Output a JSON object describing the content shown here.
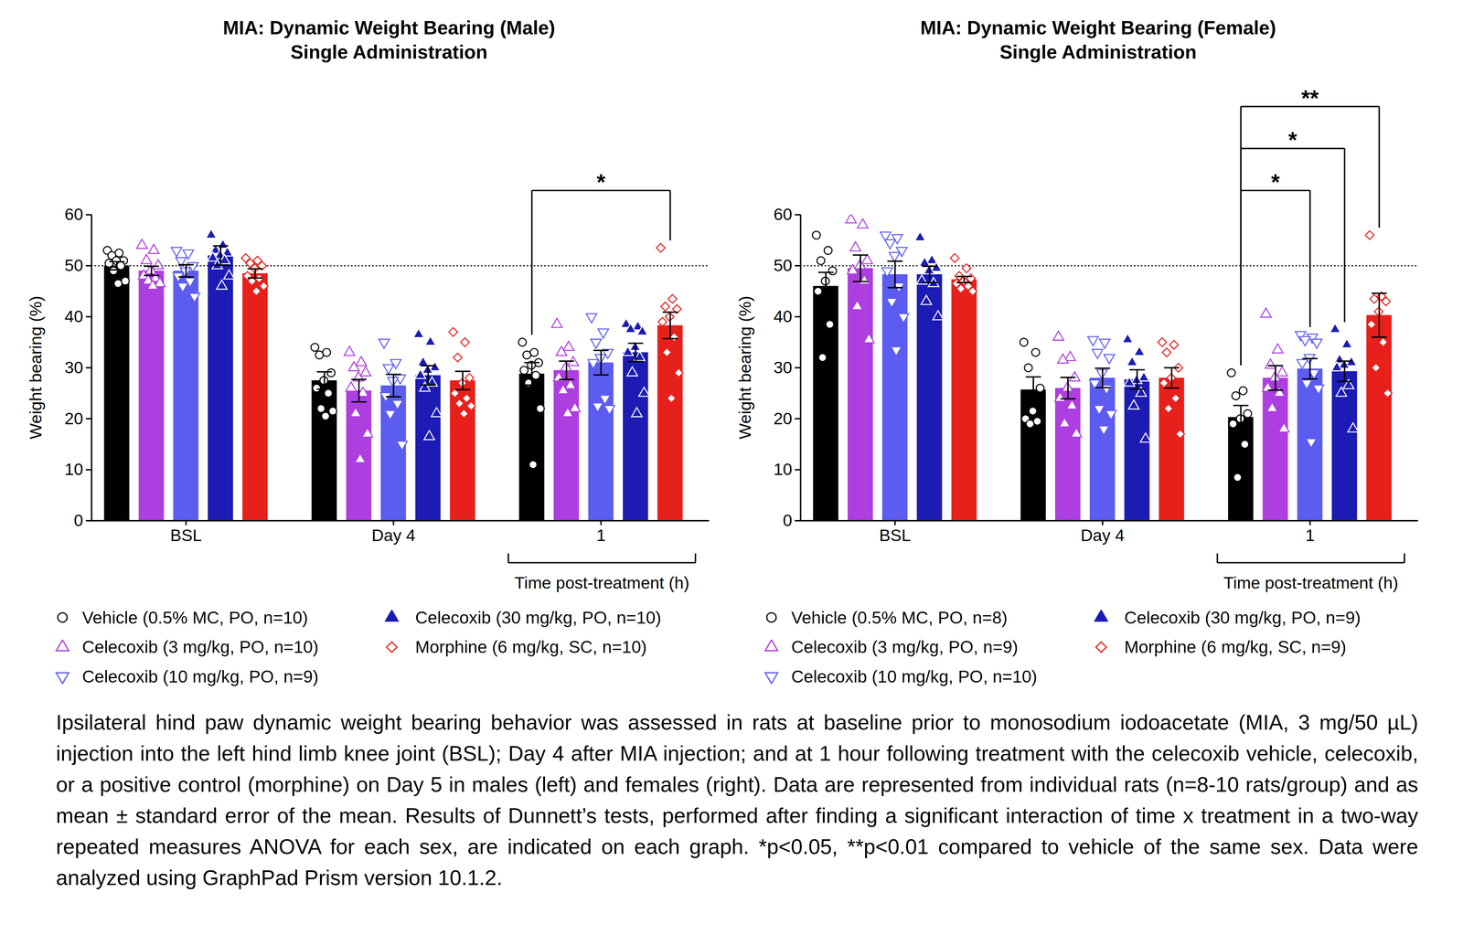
{
  "chart_data": [
    {
      "type": "bar",
      "title": "MIA: Dynamic Weight Bearing (Male)",
      "subtitle": "Single Administration",
      "categories": [
        "BSL",
        "Day 4",
        "1"
      ],
      "ylabel": "Weight bearing (%)",
      "ylim": [
        0,
        60
      ],
      "yticks": [
        0,
        10,
        20,
        30,
        40,
        50,
        60
      ],
      "legend": "bottom",
      "reference_line": {
        "y": 50,
        "line_style": "dotted"
      },
      "annotations": [
        {
          "text": "Time post-treatment (h)",
          "category": "1"
        }
      ],
      "significance": [
        {
          "category": "1",
          "from": "Vehicle (0.5% MC, PO, n=10)",
          "to": "Morphine (6 mg/kg, SC, n=10)",
          "label": "*"
        }
      ],
      "series": [
        {
          "name": "Vehicle (0.5% MC, PO, n=10)",
          "color": "#000000",
          "marker": "circle-open",
          "values": [
            50,
            27.5,
            28.8
          ],
          "errors": [
            0.8,
            1.7,
            2.2
          ],
          "points": [
            [
              53,
              52.5,
              52,
              51,
              51,
              50.5,
              50,
              49,
              47,
              46.5
            ],
            [
              34,
              33,
              32.5,
              29,
              27.5,
              26,
              25,
              22,
              21.5,
              20.5
            ],
            [
              35,
              33,
              32.5,
              31,
              30.5,
              29.5,
              28.5,
              27,
              22,
              11
            ]
          ]
        },
        {
          "name": "Celecoxib (3 mg/kg, PO, n=10)",
          "color": "#ad3ee0",
          "marker": "triangle-open",
          "values": [
            49,
            25.5,
            29.5
          ],
          "errors": [
            0.9,
            2.2,
            1.8
          ],
          "points": [
            [
              54,
              53,
              51,
              50,
              49,
              48,
              47.5,
              47,
              46.5,
              46
            ],
            [
              33,
              31,
              30,
              29,
              28,
              26,
              25,
              21,
              17,
              12
            ],
            [
              38.5,
              34,
              33,
              31,
              30,
              28,
              26.5,
              25.5,
              22,
              21
            ]
          ]
        },
        {
          "name": "Celecoxib (10 mg/kg, PO, n=9)",
          "color": "#5c5cf0",
          "marker": "triangle-down-open",
          "values": [
            49,
            26.5,
            31
          ],
          "errors": [
            1.2,
            2.2,
            2.4
          ],
          "points": [
            [
              53,
              52.5,
              51,
              50,
              49,
              48,
              47,
              46,
              44
            ],
            [
              35,
              31,
              30,
              28,
              27.5,
              24.5,
              23,
              21,
              15
            ],
            [
              40,
              37,
              35,
              33,
              32,
              31,
              24,
              22.5,
              22
            ]
          ]
        },
        {
          "name": "Celecoxib (30 mg/kg, PO, n=10)",
          "color": "#1c1cb4",
          "marker": "triangle",
          "values": [
            52,
            28.5,
            33
          ],
          "errors": [
            1.9,
            1.9,
            1.8
          ],
          "points": [
            [
              56,
              54,
              53,
              52.5,
              52,
              51.5,
              51,
              50,
              48,
              46
            ],
            [
              36.5,
              35,
              31,
              30,
              29.5,
              28.5,
              27,
              26,
              21,
              16.5
            ],
            [
              38.5,
              38,
              37.5,
              37,
              34,
              33,
              32,
              29,
              25,
              21
            ]
          ]
        },
        {
          "name": "Morphine (6 mg/kg, SC, n=10)",
          "color": "#e8201c",
          "marker": "diamond-open",
          "values": [
            48.5,
            27.5,
            38.3
          ],
          "errors": [
            0.9,
            1.8,
            2.6
          ],
          "points": [
            [
              51.5,
              51,
              50.5,
              50,
              49.5,
              48,
              47.5,
              47,
              46,
              45
            ],
            [
              37,
              35,
              32,
              28,
              27,
              25,
              24,
              23,
              22.5,
              21
            ],
            [
              53.5,
              43.5,
              42,
              41.5,
              40,
              39,
              36,
              33,
              29,
              24
            ]
          ]
        }
      ]
    },
    {
      "type": "bar",
      "title": "MIA: Dynamic Weight Bearing (Female)",
      "subtitle": "Single Administration",
      "categories": [
        "BSL",
        "Day 4",
        "1"
      ],
      "ylabel": "Weight bearing (%)",
      "ylim": [
        0,
        60
      ],
      "yticks": [
        0,
        10,
        20,
        30,
        40,
        50,
        60
      ],
      "legend": "bottom",
      "reference_line": {
        "y": 50,
        "line_style": "dotted"
      },
      "annotations": [
        {
          "text": "Time post-treatment (h)",
          "category": "1"
        }
      ],
      "significance": [
        {
          "category": "1",
          "from": "Vehicle (0.5% MC, PO, n=8)",
          "to": "Celecoxib (10 mg/kg, PO, n=10)",
          "label": "*"
        },
        {
          "category": "1",
          "from": "Vehicle (0.5% MC, PO, n=8)",
          "to": "Celecoxib (30 mg/kg, PO, n=9)",
          "label": "*"
        },
        {
          "category": "1",
          "from": "Vehicle (0.5% MC, PO, n=8)",
          "to": "Morphine (6 mg/kg, SC, n=9)",
          "label": "**"
        }
      ],
      "series": [
        {
          "name": "Vehicle (0.5% MC, PO, n=8)",
          "color": "#000000",
          "marker": "circle-open",
          "values": [
            46,
            25.7,
            20.3
          ],
          "errors": [
            2.7,
            2.5,
            2.3
          ],
          "points": [
            [
              56,
              53,
              51,
              49,
              47,
              45,
              38.5,
              32
            ],
            [
              35,
              33,
              30,
              26,
              21.5,
              20,
              19.5,
              19
            ],
            [
              29,
              25.5,
              24.5,
              21,
              20,
              19,
              15,
              8.5
            ]
          ]
        },
        {
          "name": "Celecoxib (3 mg/kg, PO, n=9)",
          "color": "#ad3ee0",
          "marker": "triangle-open",
          "values": [
            49.5,
            26,
            28
          ],
          "errors": [
            2.6,
            2.1,
            2.4
          ],
          "points": [
            [
              59,
              58,
              53.5,
              51,
              50,
              49,
              47,
              42,
              35.5
            ],
            [
              36,
              32,
              31.5,
              28,
              26,
              24,
              22.5,
              19,
              17
            ],
            [
              40.5,
              33.5,
              30.5,
              29,
              28,
              26,
              25,
              22,
              18
            ]
          ]
        },
        {
          "name": "Celecoxib (10 mg/kg, PO, n=10)",
          "color": "#5c5cf0",
          "marker": "triangle-down-open",
          "values": [
            48.3,
            28,
            29.8
          ],
          "errors": [
            2.6,
            1.9,
            2
          ],
          "points": [
            [
              56,
              55.5,
              54.5,
              53,
              52,
              49,
              46,
              43,
              40,
              33.5
            ],
            [
              35.5,
              35,
              33,
              32,
              29,
              27,
              26,
              22,
              21,
              18
            ],
            [
              36.5,
              36,
              35.5,
              35,
              32,
              31,
              29,
              27,
              26,
              15.5
            ]
          ]
        },
        {
          "name": "Celecoxib (30 mg/kg, PO, n=9)",
          "color": "#1c1cb4",
          "marker": "triangle",
          "values": [
            48.3,
            27.7,
            29.3
          ],
          "errors": [
            1.6,
            1.9,
            2
          ],
          "points": [
            [
              55.5,
              51,
              50.5,
              49.5,
              49,
              47,
              46.5,
              43,
              40
            ],
            [
              35.5,
              33,
              31,
              28,
              27.5,
              27,
              25,
              22.5,
              16
            ],
            [
              37.5,
              34.5,
              31.5,
              31,
              30.5,
              30,
              26.5,
              25,
              18
            ]
          ]
        },
        {
          "name": "Morphine (6 mg/kg, SC, n=9)",
          "color": "#e8201c",
          "marker": "diamond-open",
          "values": [
            47.3,
            28,
            40.3
          ],
          "errors": [
            0.6,
            2,
            4.3
          ],
          "points": [
            [
              51.5,
              49.5,
              48,
              47.5,
              47,
              46.5,
              46,
              45.5,
              45
            ],
            [
              35,
              34.5,
              33,
              30,
              28,
              27,
              24,
              22,
              17
            ],
            [
              56,
              44,
              43.5,
              43,
              41,
              38.5,
              35,
              30,
              25
            ]
          ]
        }
      ]
    }
  ],
  "caption": "Ipsilateral hind paw dynamic weight bearing behavior was assessed in rats at baseline prior to monosodium iodoacetate (MIA, 3 mg/50 µL) injection into the left hind limb knee joint (BSL); Day 4 after MIA injection; and at 1 hour following treatment with the celecoxib vehicle, celecoxib, or a positive control (morphine) on Day 5 in males (left) and females (right). Data are represented from individual rats (n=8-10 rats/group) and as mean ± standard error of the mean. Results of Dunnett’s tests, performed after finding a significant interaction of time x treatment in a two-way repeated measures ANOVA for each sex, are indicated on each graph. *p<0.05, **p<0.01 compared to vehicle of the same sex. Data were analyzed using GraphPad Prism version 10.1.2."
}
